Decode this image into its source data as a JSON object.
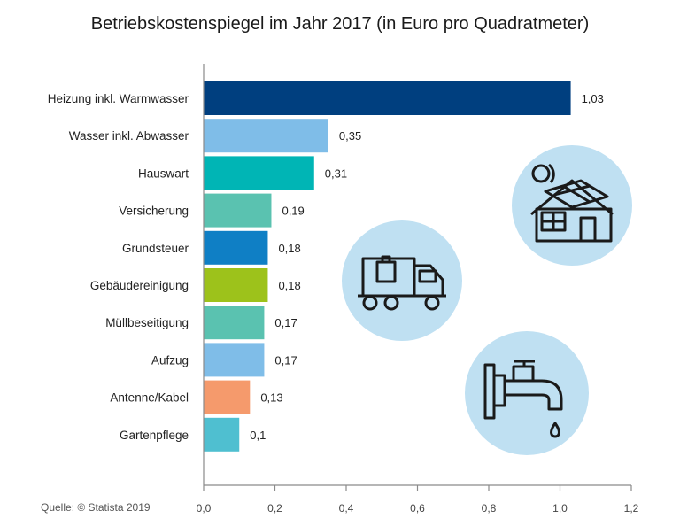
{
  "chart_data": {
    "type": "bar",
    "orientation": "horizontal",
    "title": "Betriebskostenspiegel im Jahr 2017 (in Euro pro Quadratmeter)",
    "categories": [
      "Heizung inkl. Warmwasser",
      "Wasser inkl. Abwasser",
      "Hauswart",
      "Versicherung",
      "Grundsteuer",
      "Gebäudereinigung",
      "Müllbeseitigung",
      "Aufzug",
      "Antenne/Kabel",
      "Gartenpflege"
    ],
    "values": [
      1.03,
      0.35,
      0.31,
      0.19,
      0.18,
      0.18,
      0.17,
      0.17,
      0.13,
      0.1
    ],
    "value_labels": [
      "1,03",
      "0,35",
      "0,31",
      "0,19",
      "0,18",
      "0,18",
      "0,17",
      "0,17",
      "0,13",
      "0,1"
    ],
    "colors": [
      "#003f7f",
      "#7fbde8",
      "#00b5b5",
      "#5ac2b0",
      "#0f7fc5",
      "#9dc21b",
      "#5ac2b0",
      "#7fbde8",
      "#f59a6c",
      "#4fbfd0"
    ],
    "xlim": [
      0,
      1.2
    ],
    "xticks": [
      0,
      0.2,
      0.4,
      0.6,
      0.8,
      1.0,
      1.2
    ],
    "xtick_labels": [
      "0,0",
      "0,2",
      "0,4",
      "0,6",
      "0,8",
      "1,0",
      "1,2"
    ],
    "xlabel": "",
    "ylabel": ""
  },
  "source": "Quelle: © Statista 2019",
  "icons": [
    "house-solar-icon",
    "truck-icon",
    "water-tap-icon"
  ],
  "icon_circle_color": "#bfe0f2"
}
